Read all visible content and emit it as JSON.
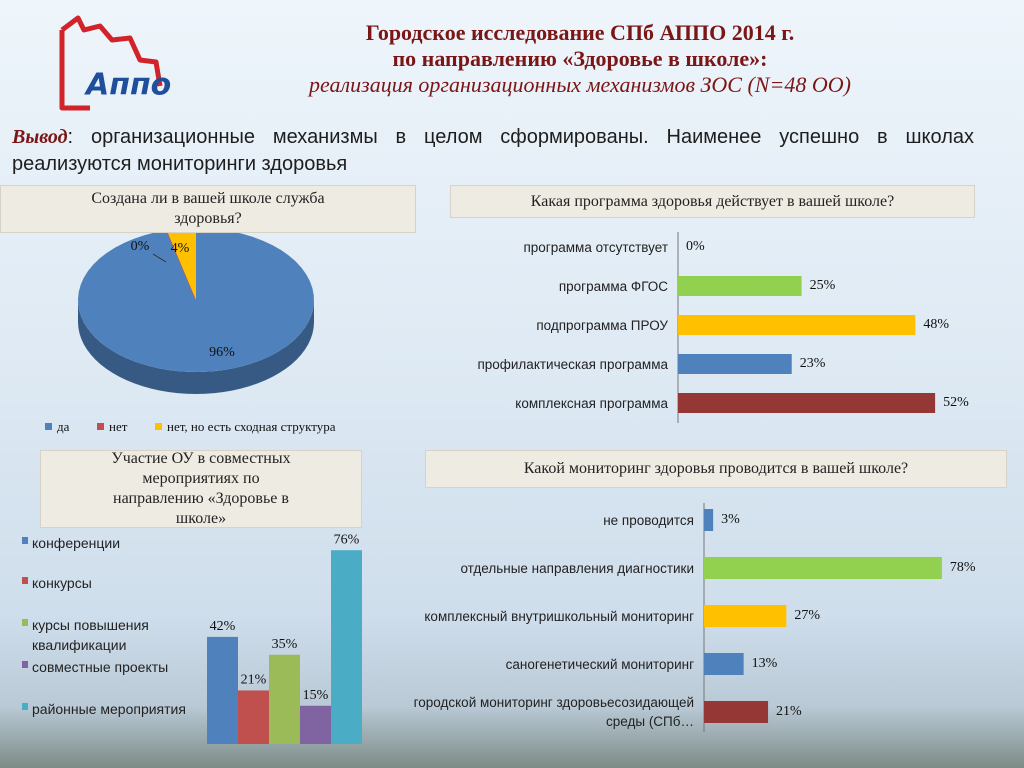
{
  "logo": "Аппо",
  "header": {
    "title": "Городское исследование СПб АППО 2014 г.",
    "subtitle": "по направлению «Здоровье в школе»:",
    "note": "реализация организационных механизмов ЗОС (N=48 ОО)"
  },
  "conclusion": {
    "label": "Вывод",
    "text": ": организационные механизмы в целом сформированы. Наименее успешно в школах реализуются мониторинги здоровья"
  },
  "chart_data": [
    {
      "type": "pie",
      "title": "Создана ли в вашей школе служба здоровья?",
      "categories": [
        "да",
        "нет",
        "нет, но есть сходная структура"
      ],
      "values": [
        96,
        0,
        4
      ],
      "value_labels": [
        "96%",
        "0%",
        "4%"
      ],
      "colors": [
        "#4f81bd",
        "#c0504d",
        "#ffc000"
      ],
      "legend": "bottom"
    },
    {
      "type": "hbar",
      "title": "Какая программа здоровья действует в вашей школе?",
      "categories": [
        "программа отсутствует",
        "программа ФГОС",
        "подпрограмма ПРОУ",
        "профилактическая программа",
        "комплексная программа"
      ],
      "values": [
        0,
        25,
        48,
        23,
        52
      ],
      "value_labels": [
        "0%",
        "25%",
        "48%",
        "23%",
        "52%"
      ],
      "colors": [
        "#4f81bd",
        "#92d050",
        "#ffc000",
        "#4f81bd",
        "#953735"
      ],
      "xlim": [
        0,
        54
      ]
    },
    {
      "type": "bar",
      "title": "Участие ОУ в совместных мероприятиях по направлению «Здоровье в школе»",
      "series": [
        {
          "name": "конференции",
          "color": "#4f81bd",
          "values": [
            42
          ],
          "value_labels": [
            "42%"
          ]
        },
        {
          "name": "конкурсы",
          "color": "#c0504d",
          "values": [
            21
          ],
          "value_labels": [
            "21%"
          ]
        },
        {
          "name": "курсы повышения квалификации",
          "color": "#9bbb59",
          "values": [
            35
          ],
          "value_labels": [
            "35%"
          ]
        },
        {
          "name": "совместные проекты",
          "color": "#8064a2",
          "values": [
            15
          ],
          "value_labels": [
            "15%"
          ]
        },
        {
          "name": "районные мероприятия",
          "color": "#4bacc6",
          "values": [
            76
          ],
          "value_labels": [
            "76%"
          ]
        }
      ],
      "ylim": [
        0,
        80
      ],
      "legend": "left"
    },
    {
      "type": "hbar",
      "title": "Какой мониторинг здоровья проводится в вашей школе?",
      "categories": [
        "не проводится",
        "отдельные направления диагностики",
        "комплексный внутришкольный мониторинг",
        "саногенетический мониторинг",
        "городской мониторинг здоровьесозидающей среды (СПб…"
      ],
      "values": [
        3,
        78,
        27,
        13,
        21
      ],
      "value_labels": [
        "3%",
        "78%",
        "27%",
        "13%",
        "21%"
      ],
      "colors": [
        "#4f81bd",
        "#92d050",
        "#ffc000",
        "#4f81bd",
        "#953735"
      ],
      "xlim": [
        0,
        80
      ]
    }
  ]
}
